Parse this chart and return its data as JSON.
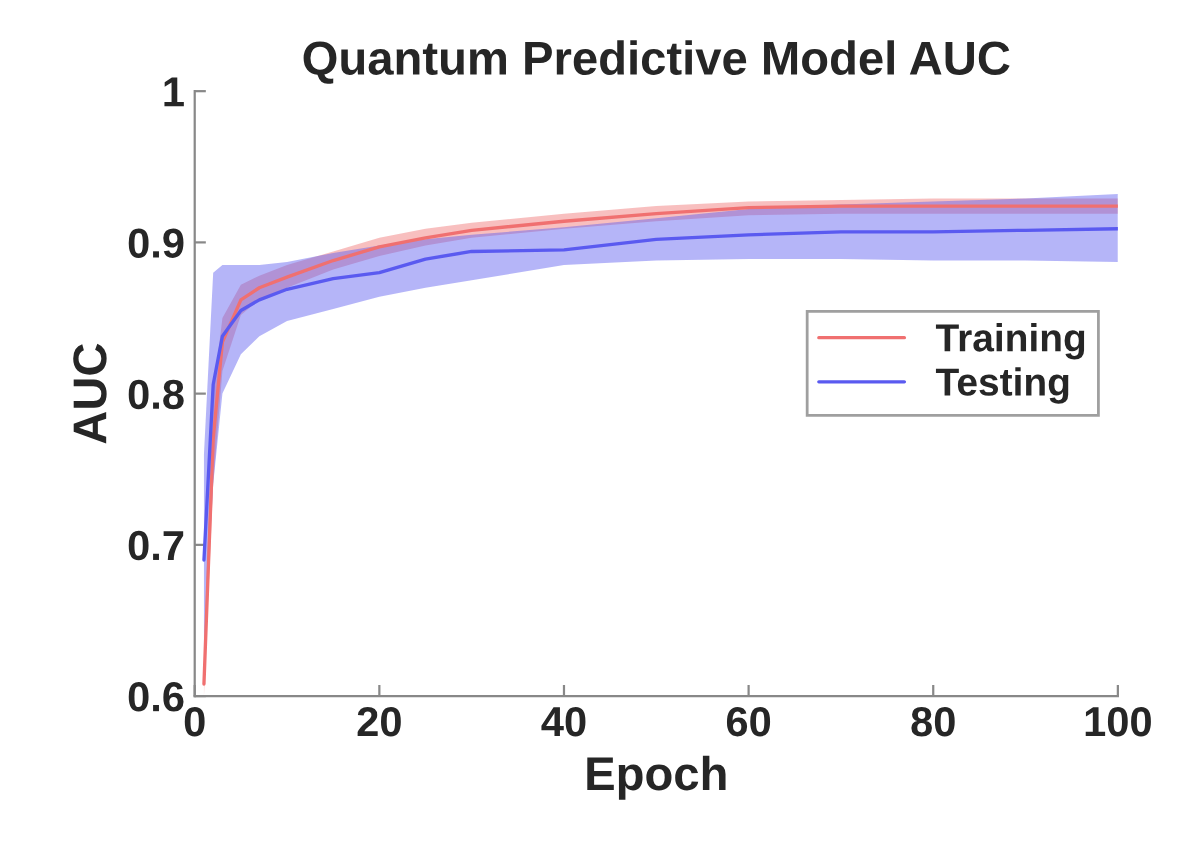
{
  "chart_data": {
    "type": "line",
    "title": "Quantum Predictive Model AUC",
    "xlabel": "Epoch",
    "ylabel": "AUC",
    "xlim": [
      0,
      100
    ],
    "ylim": [
      0.6,
      1
    ],
    "xticks": [
      0,
      20,
      40,
      60,
      80,
      100
    ],
    "yticks": [
      0.6,
      0.7,
      0.8,
      0.9,
      1
    ],
    "grid": false,
    "legend": "right",
    "line_style": "solid",
    "marker": "none",
    "x": [
      1,
      2,
      3,
      5,
      7,
      10,
      15,
      20,
      25,
      30,
      40,
      50,
      60,
      70,
      80,
      90,
      100
    ],
    "series": [
      {
        "name": "Training",
        "color": "#f07070",
        "values": [
          0.608,
          0.77,
          0.834,
          0.862,
          0.87,
          0.877,
          0.888,
          0.897,
          0.903,
          0.908,
          0.914,
          0.919,
          0.923,
          0.924,
          0.924,
          0.924,
          0.924
        ],
        "lower": [
          0.6,
          0.74,
          0.815,
          0.852,
          0.862,
          0.87,
          0.882,
          0.891,
          0.898,
          0.903,
          0.909,
          0.914,
          0.918,
          0.919,
          0.919,
          0.919,
          0.919
        ],
        "upper": [
          0.63,
          0.8,
          0.85,
          0.872,
          0.878,
          0.885,
          0.894,
          0.903,
          0.909,
          0.913,
          0.919,
          0.924,
          0.927,
          0.928,
          0.929,
          0.929,
          0.929
        ]
      },
      {
        "name": "Testing",
        "color": "#5a5af0",
        "values": [
          0.69,
          0.806,
          0.838,
          0.855,
          0.862,
          0.869,
          0.876,
          0.88,
          0.889,
          0.894,
          0.895,
          0.902,
          0.905,
          0.907,
          0.907,
          0.908,
          0.909
        ],
        "lower": [
          0.63,
          0.74,
          0.8,
          0.826,
          0.838,
          0.848,
          0.856,
          0.864,
          0.87,
          0.875,
          0.885,
          0.888,
          0.889,
          0.889,
          0.888,
          0.888,
          0.887
        ],
        "upper": [
          0.76,
          0.88,
          0.885,
          0.885,
          0.885,
          0.887,
          0.893,
          0.898,
          0.902,
          0.905,
          0.91,
          0.916,
          0.922,
          0.925,
          0.927,
          0.929,
          0.932
        ]
      }
    ]
  }
}
